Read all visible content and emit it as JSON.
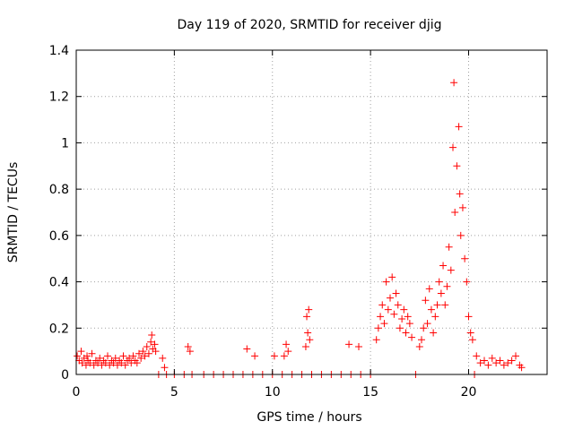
{
  "chart_data": {
    "type": "scatter",
    "title": "Day 119 of 2020, SRMTID for receiver djig",
    "xlabel": "GPS time / hours",
    "ylabel": "SRMTID / TECUs",
    "xlim": [
      0,
      24
    ],
    "ylim": [
      0,
      1.4
    ],
    "xticks": [
      0,
      5,
      10,
      15,
      20
    ],
    "xtick_labels": [
      "0",
      "5",
      "10",
      "15",
      "20"
    ],
    "yticks": [
      0,
      0.2,
      0.4,
      0.6,
      0.8,
      1.0,
      1.2,
      1.4
    ],
    "ytick_labels": [
      "0",
      "0.2",
      "0.4",
      "0.6",
      "0.8",
      "1",
      "1.2",
      "1.4"
    ],
    "grid": true,
    "marker": "+",
    "color": "#ff0000",
    "series": [
      {
        "name": "SRMTID",
        "points": [
          [
            0.05,
            0.08
          ],
          [
            0.15,
            0.06
          ],
          [
            0.25,
            0.1
          ],
          [
            0.3,
            0.05
          ],
          [
            0.4,
            0.07
          ],
          [
            0.5,
            0.04
          ],
          [
            0.55,
            0.08
          ],
          [
            0.6,
            0.06
          ],
          [
            0.7,
            0.05
          ],
          [
            0.8,
            0.09
          ],
          [
            0.9,
            0.04
          ],
          [
            1.0,
            0.06
          ],
          [
            1.1,
            0.05
          ],
          [
            1.2,
            0.07
          ],
          [
            1.3,
            0.04
          ],
          [
            1.4,
            0.06
          ],
          [
            1.5,
            0.05
          ],
          [
            1.6,
            0.08
          ],
          [
            1.7,
            0.04
          ],
          [
            1.8,
            0.06
          ],
          [
            1.9,
            0.05
          ],
          [
            2.0,
            0.07
          ],
          [
            2.1,
            0.04
          ],
          [
            2.2,
            0.06
          ],
          [
            2.3,
            0.05
          ],
          [
            2.4,
            0.08
          ],
          [
            2.5,
            0.04
          ],
          [
            2.6,
            0.06
          ],
          [
            2.7,
            0.07
          ],
          [
            2.8,
            0.05
          ],
          [
            2.9,
            0.08
          ],
          [
            3.0,
            0.06
          ],
          [
            3.1,
            0.05
          ],
          [
            3.2,
            0.09
          ],
          [
            3.3,
            0.07
          ],
          [
            3.4,
            0.1
          ],
          [
            3.5,
            0.08
          ],
          [
            3.6,
            0.12
          ],
          [
            3.7,
            0.09
          ],
          [
            3.8,
            0.14
          ],
          [
            3.85,
            0.17
          ],
          [
            3.9,
            0.11
          ],
          [
            4.0,
            0.13
          ],
          [
            4.05,
            0.1
          ],
          [
            4.2,
            0.0
          ],
          [
            4.4,
            0.07
          ],
          [
            4.5,
            0.03
          ],
          [
            4.6,
            0.0
          ],
          [
            5.0,
            0.0
          ],
          [
            5.5,
            0.0
          ],
          [
            5.7,
            0.12
          ],
          [
            5.8,
            0.1
          ],
          [
            5.9,
            0.0
          ],
          [
            6.5,
            0.0
          ],
          [
            7.0,
            0.0
          ],
          [
            7.5,
            0.0
          ],
          [
            8.0,
            0.0
          ],
          [
            8.5,
            0.0
          ],
          [
            8.7,
            0.11
          ],
          [
            9.0,
            0.0
          ],
          [
            9.1,
            0.08
          ],
          [
            9.5,
            0.0
          ],
          [
            10.0,
            0.0
          ],
          [
            10.1,
            0.08
          ],
          [
            10.5,
            0.0
          ],
          [
            10.6,
            0.08
          ],
          [
            10.7,
            0.13
          ],
          [
            10.8,
            0.1
          ],
          [
            11.0,
            0.0
          ],
          [
            11.5,
            0.0
          ],
          [
            11.7,
            0.12
          ],
          [
            11.75,
            0.25
          ],
          [
            11.8,
            0.18
          ],
          [
            11.85,
            0.28
          ],
          [
            11.9,
            0.15
          ],
          [
            12.0,
            0.0
          ],
          [
            12.5,
            0.0
          ],
          [
            13.0,
            0.0
          ],
          [
            13.5,
            0.0
          ],
          [
            13.9,
            0.13
          ],
          [
            14.0,
            0.0
          ],
          [
            14.4,
            0.12
          ],
          [
            14.5,
            0.0
          ],
          [
            15.0,
            0.0
          ],
          [
            15.3,
            0.15
          ],
          [
            15.4,
            0.2
          ],
          [
            15.5,
            0.25
          ],
          [
            15.6,
            0.3
          ],
          [
            15.7,
            0.22
          ],
          [
            15.8,
            0.4
          ],
          [
            15.9,
            0.28
          ],
          [
            16.0,
            0.33
          ],
          [
            16.1,
            0.42
          ],
          [
            16.2,
            0.26
          ],
          [
            16.3,
            0.35
          ],
          [
            16.4,
            0.3
          ],
          [
            16.5,
            0.2
          ],
          [
            16.6,
            0.24
          ],
          [
            16.7,
            0.28
          ],
          [
            16.8,
            0.18
          ],
          [
            16.9,
            0.25
          ],
          [
            17.0,
            0.22
          ],
          [
            17.1,
            0.16
          ],
          [
            17.3,
            0.0
          ],
          [
            17.5,
            0.12
          ],
          [
            17.6,
            0.15
          ],
          [
            17.7,
            0.2
          ],
          [
            17.8,
            0.32
          ],
          [
            17.9,
            0.22
          ],
          [
            18.0,
            0.37
          ],
          [
            18.1,
            0.28
          ],
          [
            18.2,
            0.18
          ],
          [
            18.3,
            0.25
          ],
          [
            18.4,
            0.3
          ],
          [
            18.5,
            0.4
          ],
          [
            18.6,
            0.35
          ],
          [
            18.7,
            0.47
          ],
          [
            18.8,
            0.3
          ],
          [
            18.9,
            0.38
          ],
          [
            19.0,
            0.55
          ],
          [
            19.1,
            0.45
          ],
          [
            19.2,
            0.98
          ],
          [
            19.25,
            1.26
          ],
          [
            19.3,
            0.7
          ],
          [
            19.4,
            0.9
          ],
          [
            19.5,
            1.07
          ],
          [
            19.55,
            0.78
          ],
          [
            19.6,
            0.6
          ],
          [
            19.7,
            0.72
          ],
          [
            19.8,
            0.5
          ],
          [
            19.9,
            0.4
          ],
          [
            20.0,
            0.25
          ],
          [
            20.1,
            0.18
          ],
          [
            20.2,
            0.15
          ],
          [
            20.3,
            0.0
          ],
          [
            20.4,
            0.08
          ],
          [
            20.6,
            0.05
          ],
          [
            20.8,
            0.06
          ],
          [
            21.0,
            0.04
          ],
          [
            21.2,
            0.07
          ],
          [
            21.4,
            0.05
          ],
          [
            21.6,
            0.06
          ],
          [
            21.8,
            0.04
          ],
          [
            22.0,
            0.05
          ],
          [
            22.2,
            0.06
          ],
          [
            22.4,
            0.08
          ],
          [
            22.6,
            0.04
          ],
          [
            22.7,
            0.03
          ]
        ]
      }
    ]
  }
}
